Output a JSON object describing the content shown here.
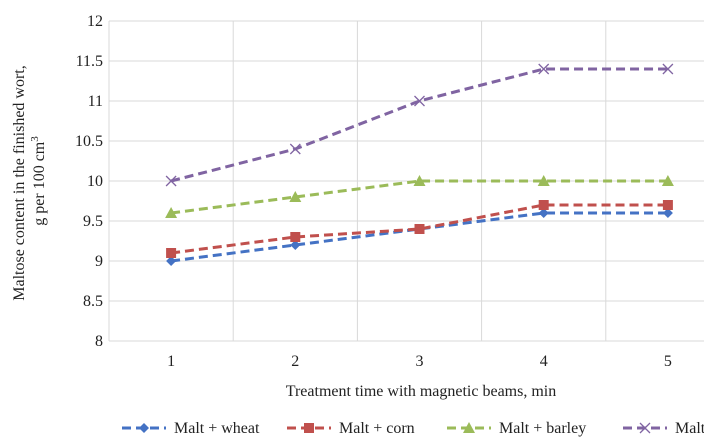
{
  "chart_data": {
    "type": "line",
    "title": "",
    "xlabel": "Treatment time with magnetic beams, min",
    "ylabel_line1": "Maltose content in the finished wort,",
    "ylabel_line2": "g per 100 cm",
    "ylabel_superscript": "3",
    "categories": [
      "1",
      "2",
      "3",
      "4",
      "5"
    ],
    "x": [
      1,
      2,
      3,
      4,
      5
    ],
    "ylim": [
      8,
      12
    ],
    "yticks": [
      "8",
      "8.5",
      "9",
      "9.5",
      "10",
      "10.5",
      "11",
      "11.5",
      "12"
    ],
    "grid": true,
    "legend_position": "bottom",
    "series": [
      {
        "name": "Malt + wheat",
        "values": [
          9.0,
          9.2,
          9.4,
          9.6,
          9.6
        ],
        "color": "#4472C4",
        "marker": "diamond"
      },
      {
        "name": "Malt + corn",
        "values": [
          9.1,
          9.3,
          9.4,
          9.7,
          9.7
        ],
        "color": "#C0504D",
        "marker": "square"
      },
      {
        "name": "Malt + barley",
        "values": [
          9.6,
          9.8,
          10.0,
          10.0,
          10.0
        ],
        "color": "#9BBB59",
        "marker": "triangle"
      },
      {
        "name": "Malt",
        "values": [
          10.0,
          10.4,
          11.0,
          11.4,
          11.4
        ],
        "color": "#8064A2",
        "marker": "x"
      }
    ]
  }
}
